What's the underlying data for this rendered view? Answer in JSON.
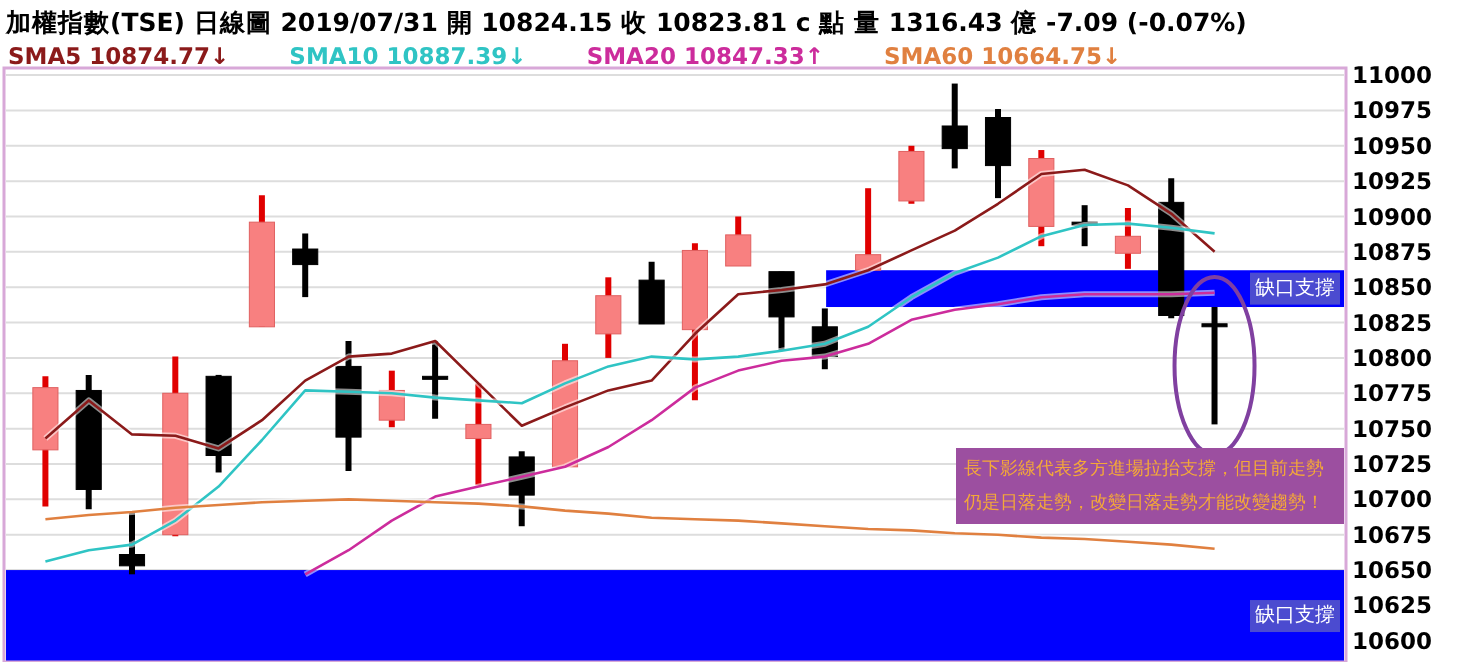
{
  "chart_data": {
    "type": "candlestick",
    "title": "加權指數(TSE)   日線圖   2019/07/31   開 10824.15   收 10823.81 c 點   量 1316.43 億   -7.09 (-0.07%)",
    "categories": [
      null,
      null,
      null,
      null,
      null,
      null,
      null,
      null,
      null,
      null,
      null,
      null,
      null,
      null,
      null,
      null,
      null,
      null,
      null,
      null,
      null,
      null,
      null,
      null,
      null,
      null,
      null,
      null
    ],
    "ohlc": [
      [
        10735,
        10787,
        10695,
        10779
      ],
      [
        10777,
        10788,
        10693,
        10707
      ],
      [
        10661,
        10691,
        10647,
        10653
      ],
      [
        10675,
        10801,
        10674,
        10775
      ],
      [
        10787,
        10788,
        10719,
        10731
      ],
      [
        10822,
        10915,
        10822,
        10896
      ],
      [
        10877,
        10888,
        10843,
        10866
      ],
      [
        10794,
        10812,
        10720,
        10744
      ],
      [
        10756,
        10791,
        10751,
        10777
      ],
      [
        10787,
        10812,
        10757,
        10786
      ],
      [
        10743,
        10782,
        10710,
        10753
      ],
      [
        10730,
        10734,
        10681,
        10703
      ],
      [
        10723,
        10810,
        10723,
        10798
      ],
      [
        10817,
        10857,
        10800,
        10844
      ],
      [
        10855,
        10868,
        10824,
        10824
      ],
      [
        10820,
        10881,
        10770,
        10876
      ],
      [
        10865,
        10900,
        10865,
        10887
      ],
      [
        10861,
        10861,
        10805,
        10829
      ],
      [
        10822,
        10835,
        10792,
        10801
      ],
      [
        10862,
        10920,
        10862,
        10873
      ],
      [
        10911,
        10950,
        10909,
        10946
      ],
      [
        10964,
        10994,
        10934,
        10948
      ],
      [
        10970,
        10976,
        10913,
        10936
      ],
      [
        10893,
        10947,
        10879,
        10941
      ],
      [
        10896,
        10908,
        10879,
        10895
      ],
      [
        10874,
        10906,
        10863,
        10886
      ],
      [
        10910,
        10927,
        10828,
        10830
      ],
      [
        10824.15,
        10836,
        10753,
        10823.81
      ]
    ],
    "series": [
      {
        "type": "line",
        "name": "SMA5 10874.77↓",
        "color": "#8b1a1a",
        "values": [
          10743,
          10770,
          10746,
          10745,
          10736,
          10756,
          10784,
          10801,
          10803,
          10812,
          10782,
          10752,
          10765,
          10777,
          10784,
          10817,
          10845,
          10848,
          10852,
          10862,
          10876,
          10890,
          10909,
          10930,
          10933,
          10922,
          10902,
          10875
        ]
      },
      {
        "type": "line",
        "name": "SMA10 10887.39↓",
        "color": "#2fc4c4",
        "values": [
          10656,
          10664,
          10668,
          10685,
          10709,
          10742,
          10777,
          10776,
          10775,
          10772,
          10770,
          10768,
          10782,
          10794,
          10801,
          10799,
          10801,
          10805,
          10810,
          10822,
          10843,
          10860,
          10871,
          10886,
          10894,
          10895,
          10892,
          10888
        ]
      },
      {
        "type": "line",
        "name": "SMA20 10847.33↑",
        "color": "#cc2c9c",
        "values": [
          null,
          null,
          null,
          null,
          null,
          null,
          10647,
          10664,
          10685,
          10702,
          10709,
          10716,
          10723,
          10737,
          10756,
          10779,
          10791,
          10798,
          10801,
          10810,
          10827,
          10834,
          10838,
          10843,
          10845,
          10845,
          10845,
          10846
        ]
      },
      {
        "type": "line",
        "name": "SMA60 10664.75↓",
        "color": "#e08040",
        "values": [
          10686,
          10689,
          10691,
          10694,
          10696,
          10698,
          10699,
          10700,
          10699,
          10698,
          10697,
          10695,
          10692,
          10690,
          10687,
          10686,
          10685,
          10683,
          10681,
          10679,
          10678,
          10676,
          10675,
          10673,
          10672,
          10670,
          10668,
          10665
        ]
      }
    ],
    "ylim": [
      10585,
      11005
    ],
    "yticks": [
      10600,
      10625,
      10650,
      10675,
      10700,
      10725,
      10750,
      10775,
      10800,
      10825,
      10850,
      10875,
      10900,
      10925,
      10950,
      10975,
      11000
    ],
    "grid": "y",
    "legend": "top",
    "bands": [
      {
        "axis": "y",
        "from": 10836,
        "to": 10862,
        "label": "缺口支撐",
        "color": "#0000ff"
      },
      {
        "axis": "y",
        "from": 10585,
        "to": 10650,
        "label": "缺口支撐",
        "color": "#0000ff"
      }
    ],
    "annotations": [
      "長下影線代表多方進場拉抬支撐，但目前走勢仍是日落走勢，改變日落走勢才能改變趨勢！"
    ]
  }
}
